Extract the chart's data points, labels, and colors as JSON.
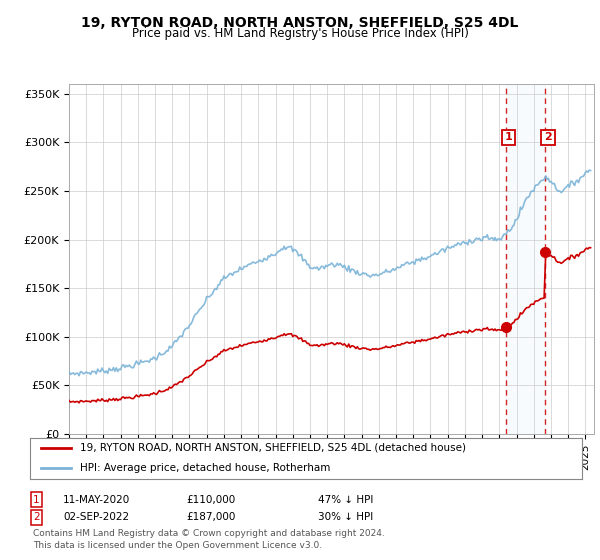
{
  "title": "19, RYTON ROAD, NORTH ANSTON, SHEFFIELD, S25 4DL",
  "subtitle": "Price paid vs. HM Land Registry's House Price Index (HPI)",
  "ylabel_ticks": [
    "£0",
    "£50K",
    "£100K",
    "£150K",
    "£200K",
    "£250K",
    "£300K",
    "£350K"
  ],
  "ytick_values": [
    0,
    50000,
    100000,
    150000,
    200000,
    250000,
    300000,
    350000
  ],
  "ylim": [
    0,
    360000
  ],
  "xlim_start": 1995.0,
  "xlim_end": 2025.5,
  "hpi_color": "#7ab3d8",
  "price_color": "#cc0000",
  "sale1_x": 2020.37,
  "sale1_y": 110000,
  "sale2_x": 2022.67,
  "sale2_y": 187000,
  "point1_date": "11-MAY-2020",
  "point1_value": 110000,
  "point1_label": "47% ↓ HPI",
  "point2_date": "02-SEP-2022",
  "point2_value": 187000,
  "point2_label": "30% ↓ HPI",
  "legend_label1": "19, RYTON ROAD, NORTH ANSTON, SHEFFIELD, S25 4DL (detached house)",
  "legend_label2": "HPI: Average price, detached house, Rotherham",
  "footer1": "Contains HM Land Registry data © Crown copyright and database right 2024.",
  "footer2": "This data is licensed under the Open Government Licence v3.0.",
  "bg_color": "#ffffff",
  "plot_bg_color": "#ffffff",
  "grid_color": "#cccccc",
  "highlight_bg_color": "#daeaf5"
}
